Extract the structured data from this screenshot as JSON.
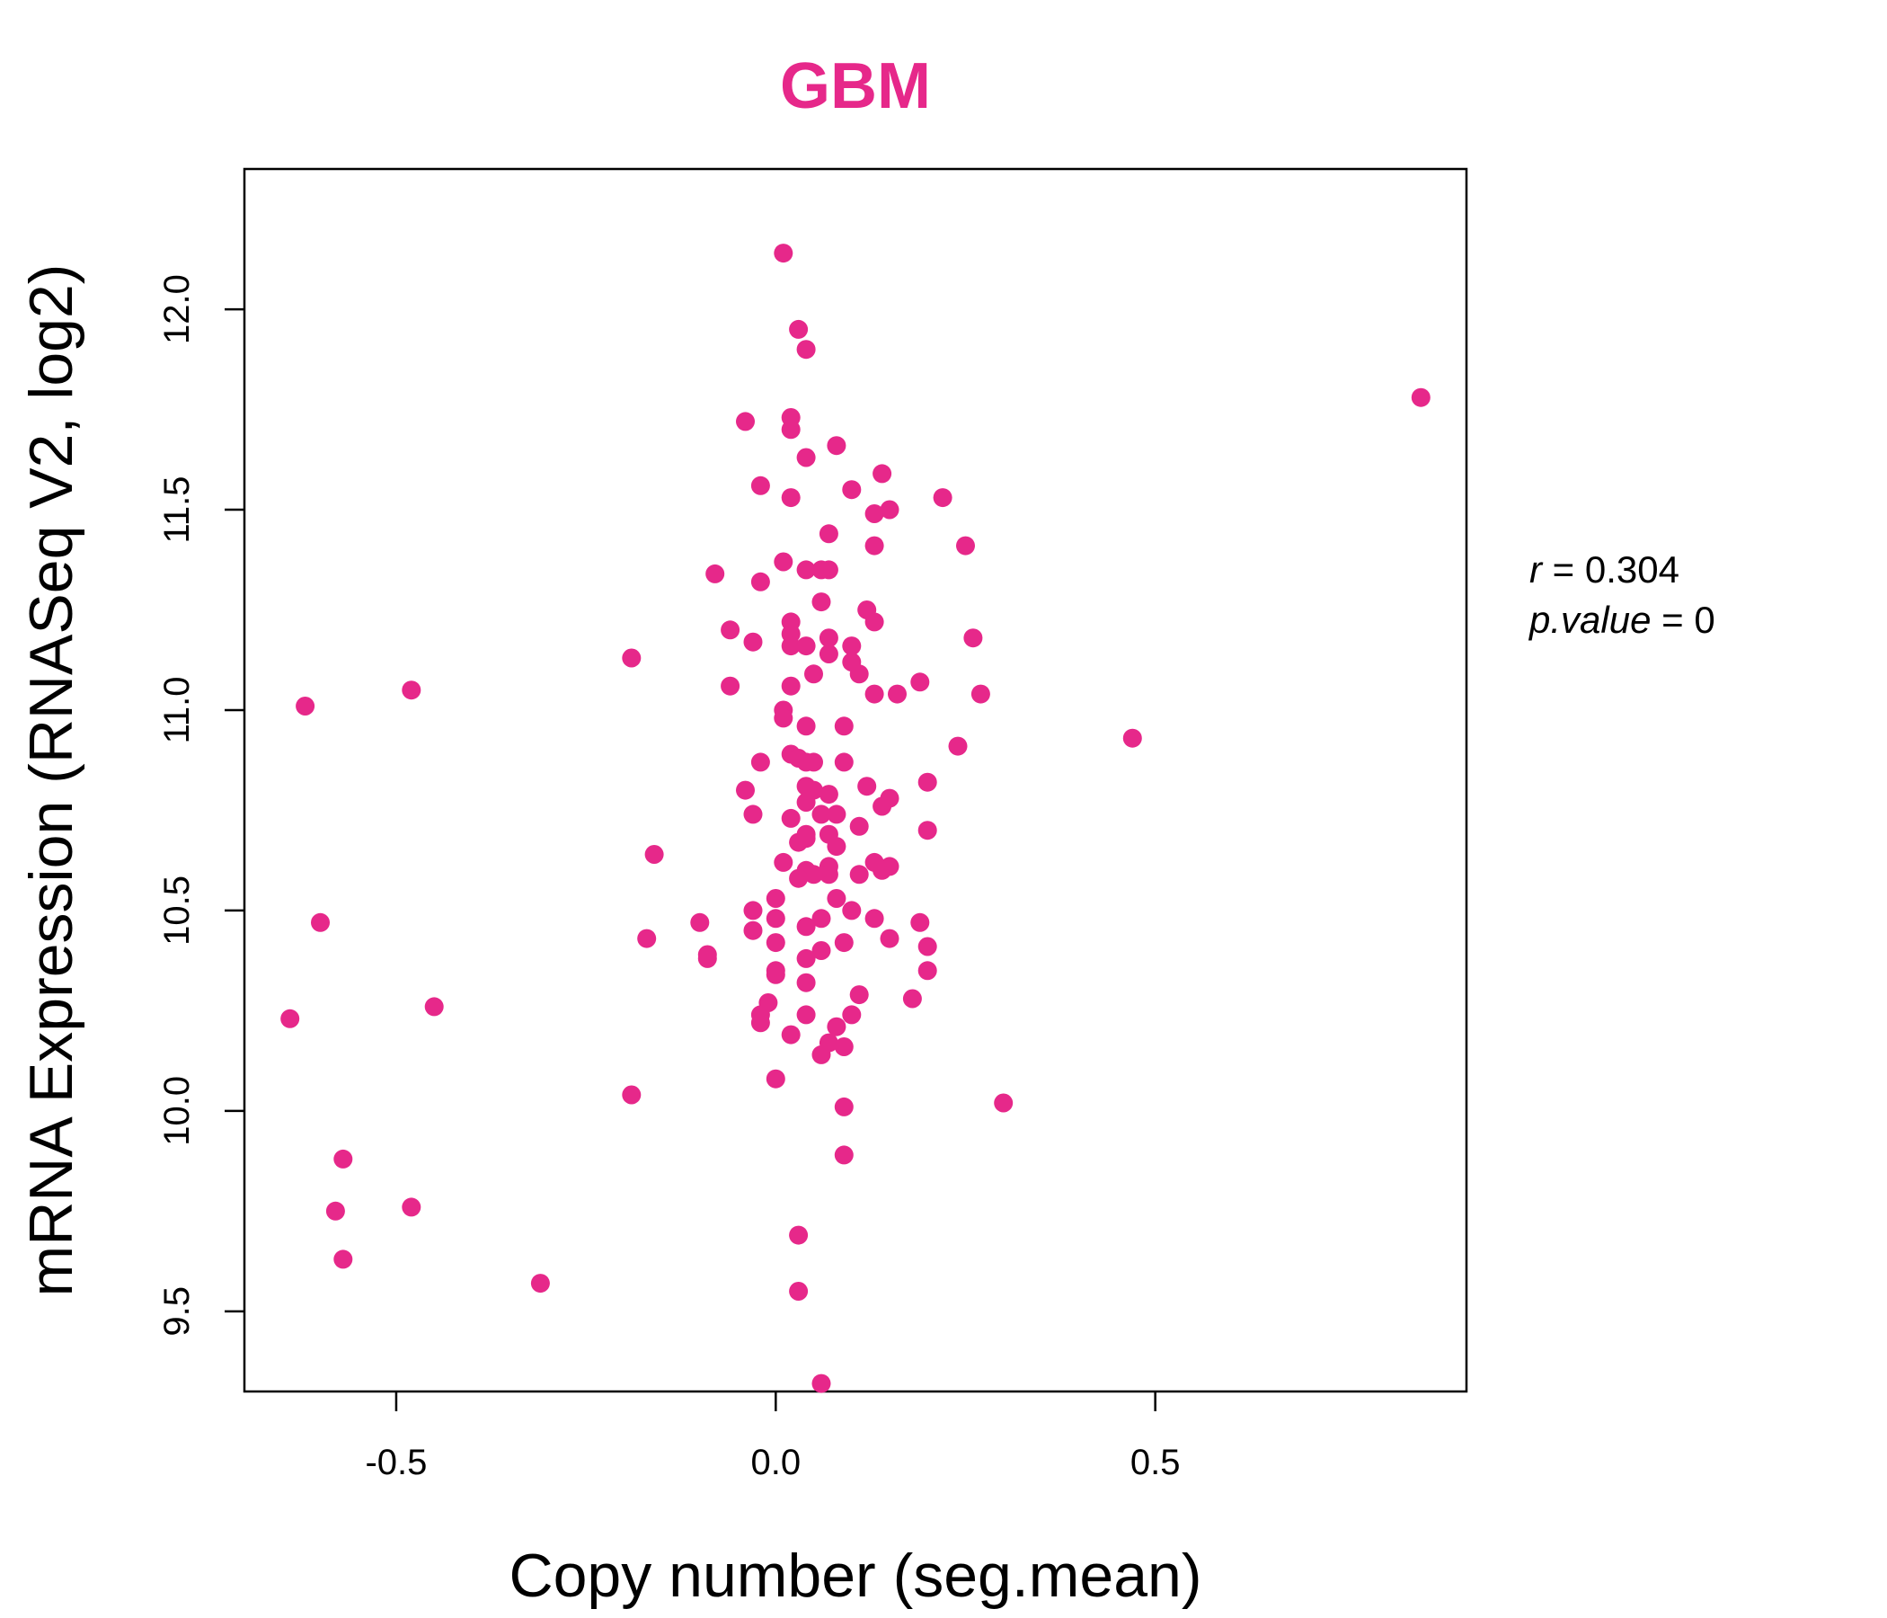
{
  "chart_data": {
    "type": "scatter",
    "title": "GBM",
    "xlabel": "Copy number (seg.mean)",
    "ylabel": "mRNA Expression (RNASeq V2, log2)",
    "xlim": [
      -0.7,
      0.91
    ],
    "ylim": [
      9.3,
      12.35
    ],
    "x_ticks": [
      -0.5,
      0.0,
      0.5
    ],
    "x_tick_labels": [
      "-0.5",
      "0.0",
      "0.5"
    ],
    "y_ticks": [
      9.5,
      10.0,
      10.5,
      11.0,
      11.5,
      12.0
    ],
    "y_tick_labels": [
      "9.5",
      "10.0",
      "10.5",
      "11.0",
      "11.5",
      "12.0"
    ],
    "grid": false,
    "color": "#e6288a",
    "stats": {
      "r_label": "r",
      "r_value": "0.304",
      "p_label": "p.value",
      "p_value": "0"
    },
    "points": [
      [
        0.01,
        12.14
      ],
      [
        0.03,
        11.95
      ],
      [
        0.04,
        11.9
      ],
      [
        0.85,
        11.78
      ],
      [
        -0.04,
        11.72
      ],
      [
        0.02,
        11.73
      ],
      [
        0.02,
        11.7
      ],
      [
        0.08,
        11.66
      ],
      [
        0.04,
        11.63
      ],
      [
        0.14,
        11.59
      ],
      [
        -0.02,
        11.56
      ],
      [
        0.02,
        11.53
      ],
      [
        0.1,
        11.55
      ],
      [
        0.22,
        11.53
      ],
      [
        0.15,
        11.5
      ],
      [
        0.13,
        11.49
      ],
      [
        0.07,
        11.44
      ],
      [
        0.25,
        11.41
      ],
      [
        0.13,
        11.41
      ],
      [
        0.01,
        11.37
      ],
      [
        0.04,
        11.35
      ],
      [
        0.06,
        11.35
      ],
      [
        0.07,
        11.35
      ],
      [
        -0.08,
        11.34
      ],
      [
        -0.02,
        11.32
      ],
      [
        0.06,
        11.27
      ],
      [
        0.12,
        11.25
      ],
      [
        0.02,
        11.22
      ],
      [
        0.13,
        11.22
      ],
      [
        -0.06,
        11.2
      ],
      [
        0.02,
        11.19
      ],
      [
        0.07,
        11.18
      ],
      [
        0.26,
        11.18
      ],
      [
        -0.03,
        11.17
      ],
      [
        0.02,
        11.16
      ],
      [
        0.04,
        11.16
      ],
      [
        0.1,
        11.16
      ],
      [
        0.07,
        11.14
      ],
      [
        -0.19,
        11.13
      ],
      [
        0.1,
        11.12
      ],
      [
        0.11,
        11.09
      ],
      [
        0.05,
        11.09
      ],
      [
        0.19,
        11.07
      ],
      [
        0.02,
        11.06
      ],
      [
        -0.06,
        11.06
      ],
      [
        0.13,
        11.04
      ],
      [
        0.16,
        11.04
      ],
      [
        0.27,
        11.04
      ],
      [
        -0.62,
        11.01
      ],
      [
        -0.48,
        11.05
      ],
      [
        0.01,
        11.0
      ],
      [
        0.01,
        10.98
      ],
      [
        0.04,
        10.96
      ],
      [
        0.09,
        10.96
      ],
      [
        0.47,
        10.93
      ],
      [
        0.24,
        10.91
      ],
      [
        0.02,
        10.89
      ],
      [
        0.03,
        10.88
      ],
      [
        -0.02,
        10.87
      ],
      [
        0.04,
        10.87
      ],
      [
        0.05,
        10.87
      ],
      [
        0.09,
        10.87
      ],
      [
        0.2,
        10.82
      ],
      [
        0.12,
        10.81
      ],
      [
        0.04,
        10.81
      ],
      [
        0.05,
        10.8
      ],
      [
        -0.04,
        10.8
      ],
      [
        0.07,
        10.79
      ],
      [
        0.15,
        10.78
      ],
      [
        0.04,
        10.77
      ],
      [
        0.14,
        10.76
      ],
      [
        -0.03,
        10.74
      ],
      [
        0.06,
        10.74
      ],
      [
        0.08,
        10.74
      ],
      [
        0.02,
        10.73
      ],
      [
        0.11,
        10.71
      ],
      [
        0.04,
        10.69
      ],
      [
        0.07,
        10.69
      ],
      [
        0.2,
        10.7
      ],
      [
        0.03,
        10.67
      ],
      [
        0.04,
        10.68
      ],
      [
        0.08,
        10.66
      ],
      [
        -0.16,
        10.64
      ],
      [
        0.01,
        10.62
      ],
      [
        0.07,
        10.61
      ],
      [
        0.13,
        10.62
      ],
      [
        0.04,
        10.6
      ],
      [
        0.14,
        10.6
      ],
      [
        0.15,
        10.61
      ],
      [
        0.05,
        10.59
      ],
      [
        0.07,
        10.59
      ],
      [
        0.11,
        10.59
      ],
      [
        0.03,
        10.58
      ],
      [
        0.08,
        10.53
      ],
      [
        0.0,
        10.53
      ],
      [
        0.1,
        10.5
      ],
      [
        -0.03,
        10.5
      ],
      [
        0.0,
        10.48
      ],
      [
        0.06,
        10.48
      ],
      [
        0.13,
        10.48
      ],
      [
        0.19,
        10.47
      ],
      [
        -0.1,
        10.47
      ],
      [
        -0.6,
        10.47
      ],
      [
        0.04,
        10.46
      ],
      [
        -0.03,
        10.45
      ],
      [
        0.15,
        10.43
      ],
      [
        -0.17,
        10.43
      ],
      [
        0.09,
        10.42
      ],
      [
        0.0,
        10.42
      ],
      [
        0.2,
        10.41
      ],
      [
        0.06,
        10.4
      ],
      [
        -0.09,
        10.39
      ],
      [
        0.04,
        10.38
      ],
      [
        -0.09,
        10.38
      ],
      [
        0.0,
        10.35
      ],
      [
        0.2,
        10.35
      ],
      [
        0.0,
        10.34
      ],
      [
        0.04,
        10.32
      ],
      [
        0.11,
        10.29
      ],
      [
        0.18,
        10.28
      ],
      [
        -0.01,
        10.27
      ],
      [
        -0.45,
        10.26
      ],
      [
        -0.02,
        10.24
      ],
      [
        0.04,
        10.24
      ],
      [
        0.1,
        10.24
      ],
      [
        -0.64,
        10.23
      ],
      [
        -0.02,
        10.22
      ],
      [
        0.08,
        10.21
      ],
      [
        0.02,
        10.19
      ],
      [
        0.07,
        10.17
      ],
      [
        0.09,
        10.16
      ],
      [
        0.06,
        10.14
      ],
      [
        0.0,
        10.08
      ],
      [
        -0.19,
        10.04
      ],
      [
        0.3,
        10.02
      ],
      [
        0.09,
        10.01
      ],
      [
        0.09,
        9.89
      ],
      [
        -0.57,
        9.88
      ],
      [
        -0.58,
        9.75
      ],
      [
        -0.48,
        9.76
      ],
      [
        0.03,
        9.69
      ],
      [
        -0.57,
        9.63
      ],
      [
        -0.31,
        9.57
      ],
      [
        0.03,
        9.55
      ],
      [
        0.06,
        9.32
      ]
    ]
  }
}
